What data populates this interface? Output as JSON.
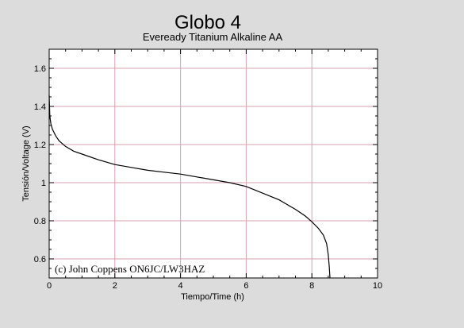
{
  "chart_data": {
    "type": "line",
    "title": "Globo 4",
    "subtitle": "Eveready Titanium Alkaline AA",
    "xlabel": "Tiempo/Time (h)",
    "ylabel": "Tensión/Voltage (V)",
    "xlim": [
      0,
      10
    ],
    "ylim": [
      0.5,
      1.7
    ],
    "x_ticks": [
      "0",
      "2",
      "4",
      "6",
      "8",
      "10"
    ],
    "y_ticks": [
      "0.6",
      "0.8",
      "1",
      "1.2",
      "1.4",
      "1.6"
    ],
    "grid": true,
    "annotation": "(c) John Coppens ON6JC/LW3HAZ",
    "colors": {
      "background": "#dcdcdc",
      "plot": "#ffffff",
      "grid": "#d8a0b0",
      "line": "#000000"
    },
    "series": [
      {
        "x": [
          0.0,
          0.02,
          0.05,
          0.1,
          0.2,
          0.3,
          0.5,
          0.75,
          1.0,
          1.5,
          2.0,
          2.5,
          3.0,
          3.5,
          4.0,
          4.5,
          5.0,
          5.5,
          6.0,
          6.5,
          7.0,
          7.5,
          7.8,
          8.0,
          8.2,
          8.35,
          8.45,
          8.5,
          8.53,
          8.55
        ],
        "y": [
          1.46,
          1.35,
          1.31,
          1.28,
          1.245,
          1.22,
          1.19,
          1.165,
          1.15,
          1.12,
          1.095,
          1.08,
          1.065,
          1.055,
          1.045,
          1.03,
          1.015,
          1.0,
          0.98,
          0.945,
          0.91,
          0.86,
          0.825,
          0.795,
          0.76,
          0.725,
          0.68,
          0.62,
          0.56,
          0.5
        ]
      }
    ]
  }
}
